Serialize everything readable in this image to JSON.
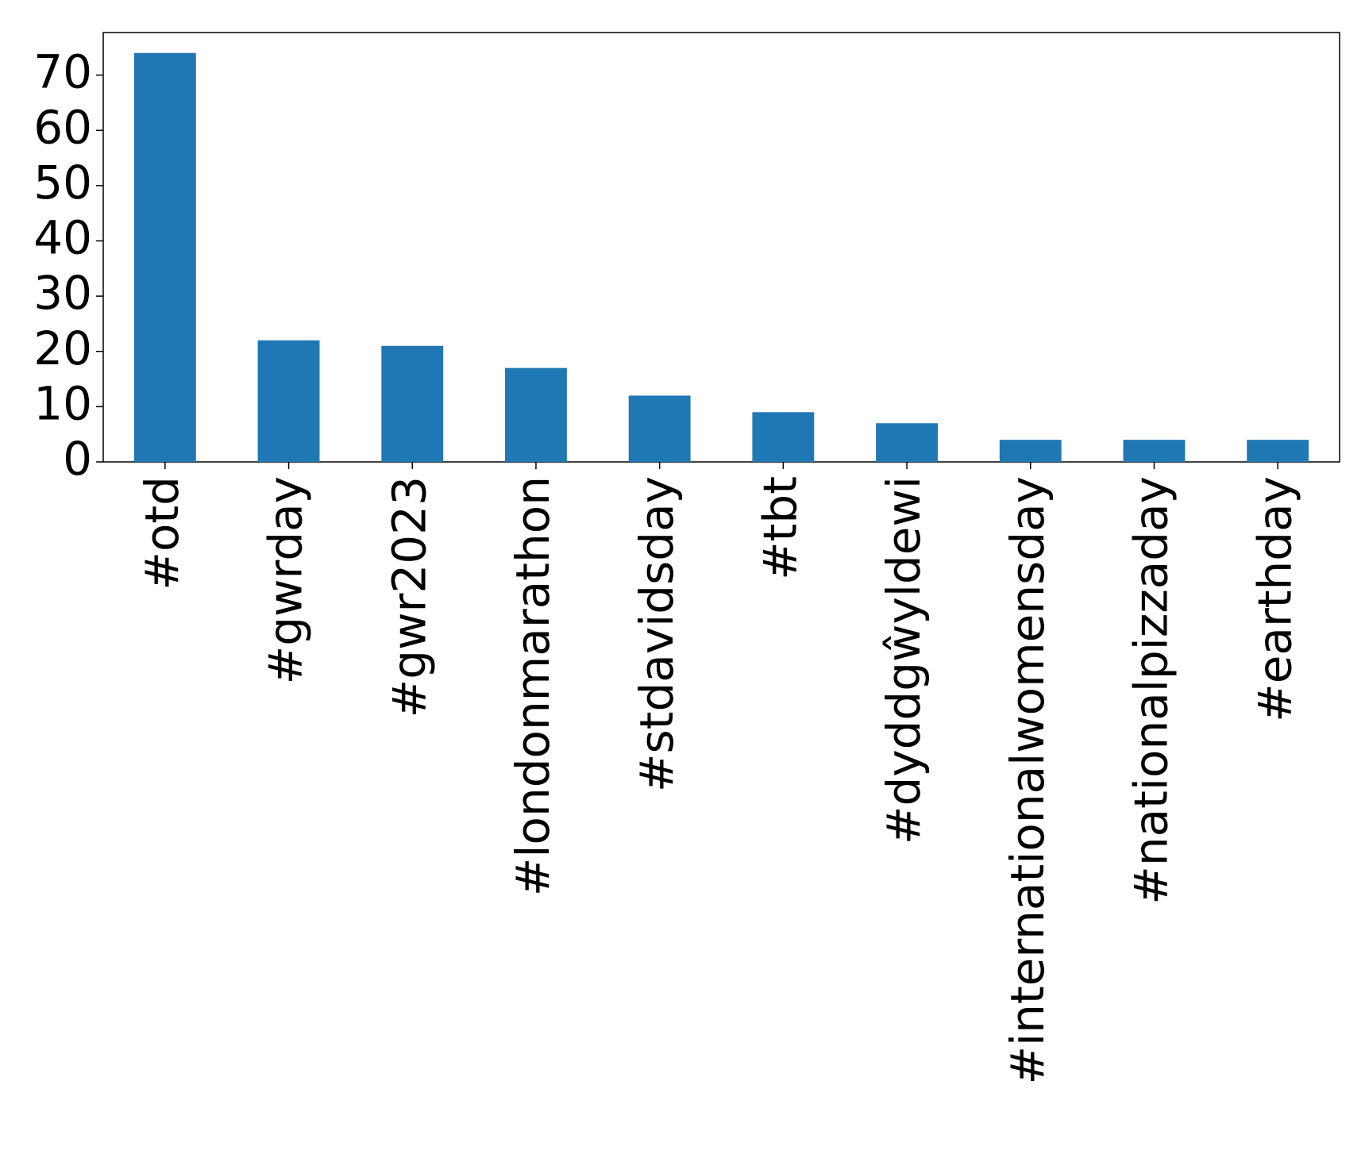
{
  "chart_data": {
    "type": "bar",
    "categories": [
      "#otd",
      "#gwrday",
      "#gwr2023",
      "#londonmarathon",
      "#stdavidsday",
      "#tbt",
      "#dyddgŵyldewi",
      "#internationalwomensday",
      "#nationalpizzaday",
      "#earthday"
    ],
    "values": [
      74,
      22,
      21,
      17,
      12,
      9,
      7,
      4,
      4,
      4
    ],
    "color": "#1f77b4",
    "ylim": [
      0,
      77.7
    ],
    "yticks": [
      0,
      10,
      20,
      30,
      40,
      50,
      60,
      70
    ],
    "grid": false
  }
}
